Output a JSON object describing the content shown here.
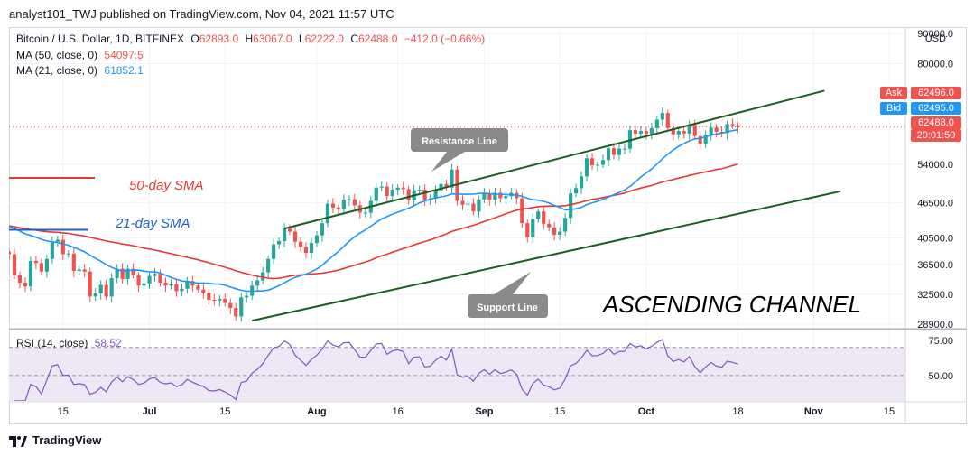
{
  "header": {
    "published": "analyst101_TWJ published on TradingView.com, Nov 04, 2021 11:57 UTC"
  },
  "legend": {
    "symbol": "Bitcoin / U.S. Dollar, 1D, BITFINEX",
    "o_label": "O",
    "o_value": "62893.0",
    "h_label": "H",
    "h_value": "63067.0",
    "l_label": "L",
    "l_value": "62222.0",
    "c_label": "C",
    "c_value": "62488.0",
    "change": "−412.0 (−0.66%)",
    "ma50_label": "MA (50, close, 0)",
    "ma50_value": "54097.5",
    "ma21_label": "MA (21, close, 0)",
    "ma21_value": "61852.1",
    "rsi_label": "RSI (14, close)",
    "rsi_value": "58.52"
  },
  "price_tags": {
    "ask_label": "Ask",
    "ask_value": "62496.0",
    "bid_label": "Bid",
    "bid_value": "62495.0",
    "last_value": "62488.0",
    "countdown": "20:01:50"
  },
  "annotations": {
    "resistance": "Resistance Line",
    "support": "Support Line",
    "sma50": "50-day SMA",
    "sma21": "21-day SMA",
    "channel": "ASCENDING CHANNEL"
  },
  "footer": {
    "brand": "TradingView"
  },
  "colors": {
    "up": "#26a69a",
    "down": "#ef5350",
    "ma50": "#e53935",
    "ma21": "#2196f3",
    "channel": "#1b5e20",
    "rsi": "#7e57c2",
    "rsi_band": "#ede7f6"
  },
  "chart_data": [
    {
      "type": "candlestick",
      "title": "Bitcoin / U.S. Dollar, 1D, BITFINEX",
      "currency": "USD",
      "y_scale": "log",
      "y_ticks": [
        "90000.0",
        "80000.0",
        "54000.0",
        "46500.0",
        "40500.0",
        "36500.0",
        "32500.0",
        "28900.0"
      ],
      "y_tick_values": [
        90000,
        80000,
        54000,
        46500,
        40500,
        36500,
        32500,
        28900
      ],
      "ylim": [
        28500,
        92000
      ],
      "x_ticks": [
        "15",
        "Jul",
        "15",
        "Aug",
        "16",
        "Sep",
        "15",
        "Oct",
        "18",
        "Nov",
        "15"
      ],
      "x_tick_dates": [
        "2021-06-15",
        "2021-07-01",
        "2021-07-15",
        "2021-08-01",
        "2021-08-16",
        "2021-09-01",
        "2021-09-15",
        "2021-10-01",
        "2021-10-18",
        "2021-11-01",
        "2021-11-15"
      ],
      "x_start": "2021-06-05",
      "x_end": "2021-11-18",
      "closes_start": "2021-06-05",
      "closes": [
        38000,
        35000,
        34000,
        33500,
        37000,
        36700,
        35500,
        37300,
        39900,
        40200,
        38000,
        38100,
        35600,
        35800,
        35500,
        32200,
        32600,
        33700,
        32200,
        34600,
        35900,
        34500,
        35900,
        35000,
        33600,
        33900,
        34900,
        35200,
        34000,
        33600,
        33800,
        32900,
        33200,
        34200,
        33600,
        33100,
        32700,
        31800,
        31700,
        31900,
        31400,
        30800,
        29800,
        32100,
        32300,
        33600,
        34300,
        35400,
        37300,
        39500,
        40000,
        42000,
        41500,
        39900,
        39100,
        38200,
        39700,
        40900,
        42900,
        46300,
        45600,
        45300,
        47000,
        47100,
        46000,
        44700,
        44700,
        46800,
        49300,
        49500,
        47700,
        48900,
        49300,
        49000,
        46900,
        48800,
        48900,
        47000,
        47200,
        48800,
        50000,
        49300,
        52900,
        46800,
        46100,
        46300,
        44900,
        47100,
        48200,
        47000,
        48300,
        47300,
        47700,
        48300,
        47300,
        42900,
        40600,
        43600,
        44900,
        42800,
        42200,
        41000,
        41500,
        43800,
        48200,
        49200,
        51500,
        55300,
        53800,
        53900,
        54900,
        57500,
        56000,
        57400,
        57400,
        61700,
        60900,
        61500,
        60800,
        62200,
        64300,
        66000,
        62200,
        60700,
        61500,
        60900,
        63000,
        60300,
        58500,
        60600,
        62300,
        61300,
        61000,
        63200,
        62900,
        62488
      ],
      "series": [
        {
          "name": "MA (50, close, 0)",
          "last": 54097.5
        },
        {
          "name": "MA (21, close, 0)",
          "last": 61852.1
        }
      ],
      "annotations": [
        "Resistance Line",
        "Support Line",
        "50-day SMA",
        "21-day SMA",
        "ASCENDING CHANNEL"
      ],
      "last_price": 62488.0,
      "ask": 62496.0,
      "bid": 62495.0
    },
    {
      "type": "line",
      "title": "RSI (14, close)",
      "y_ticks": [
        "75.00",
        "50.00"
      ],
      "y_tick_values": [
        75,
        50
      ],
      "ylim": [
        32,
        82
      ],
      "band": [
        30,
        70
      ],
      "last": 58.52
    }
  ]
}
